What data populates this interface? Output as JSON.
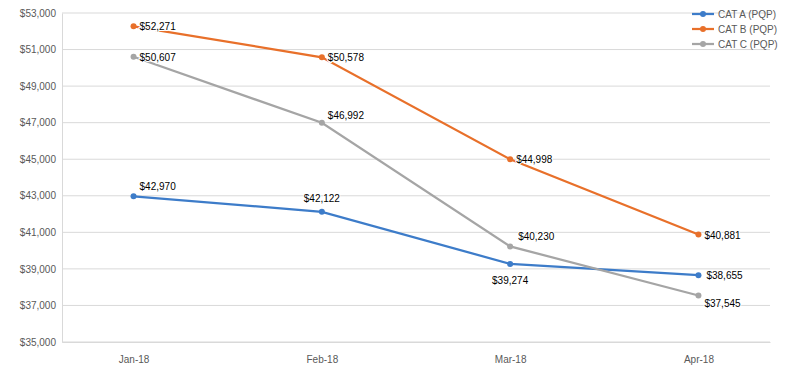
{
  "chart_data": {
    "type": "line",
    "categories": [
      "Jan-18",
      "Feb-18",
      "Mar-18",
      "Apr-18"
    ],
    "series": [
      {
        "name": "CAT A (PQP)",
        "color": "#3d7cc9",
        "marker": "circle",
        "values": [
          42970,
          42122,
          39274,
          38655
        ],
        "value_labels": [
          "$42,970",
          "$42,122",
          "$39,274",
          "$38,655"
        ]
      },
      {
        "name": "CAT B (PQP)",
        "color": "#e8702a",
        "marker": "circle",
        "values": [
          52271,
          50578,
          44998,
          40881
        ],
        "value_labels": [
          "$52,271",
          "$50,578",
          "$44,998",
          "$40,881"
        ]
      },
      {
        "name": "CAT C (PQP)",
        "color": "#a5a5a5",
        "marker": "circle",
        "values": [
          50607,
          46992,
          40230,
          37545
        ],
        "value_labels": [
          "$50,607",
          "$46,992",
          "$40,230",
          "$37,545"
        ]
      }
    ],
    "ylim": [
      35000,
      53000
    ],
    "yticks": [
      {
        "value": 35000,
        "label": "$35,000"
      },
      {
        "value": 37000,
        "label": "$37,000"
      },
      {
        "value": 39000,
        "label": "$39,000"
      },
      {
        "value": 41000,
        "label": "$41,000"
      },
      {
        "value": 43000,
        "label": "$43,000"
      },
      {
        "value": 45000,
        "label": "$45,000"
      },
      {
        "value": 47000,
        "label": "$47,000"
      },
      {
        "value": 49000,
        "label": "$49,000"
      },
      {
        "value": 51000,
        "label": "$51,000"
      },
      {
        "value": 53000,
        "label": "$53,000"
      }
    ],
    "grid": true,
    "legend": "upper right",
    "data_labels": true
  }
}
